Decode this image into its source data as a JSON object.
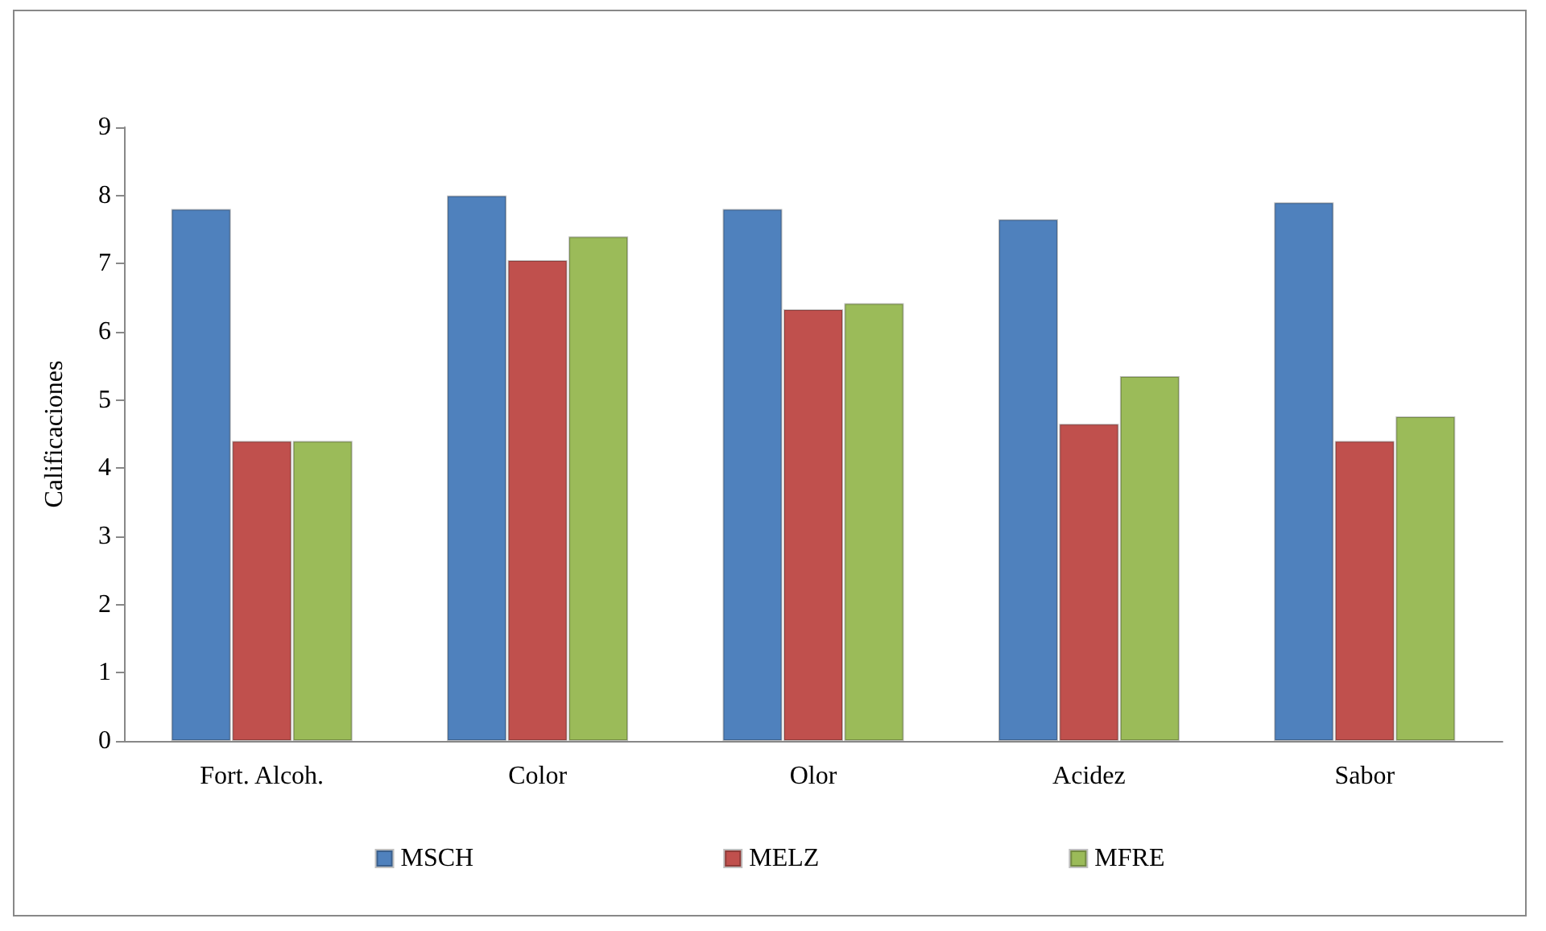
{
  "chart_data": {
    "type": "bar",
    "ylabel": "Calificaciones",
    "categories": [
      "Fort. Alcoh.",
      "Color",
      "Olor",
      "Acidez",
      "Sabor"
    ],
    "series": [
      {
        "name": "MSCH",
        "color": "#4f81bd",
        "values": [
          7.8,
          8.0,
          7.8,
          7.65,
          7.9
        ]
      },
      {
        "name": "MELZ",
        "color": "#c0504d",
        "values": [
          4.4,
          7.05,
          6.33,
          4.65,
          4.4
        ]
      },
      {
        "name": "MFRE",
        "color": "#9bbb59",
        "values": [
          4.4,
          7.4,
          6.42,
          5.35,
          4.76
        ]
      }
    ],
    "ylim": [
      0,
      9
    ],
    "yticks": [
      0,
      1,
      2,
      3,
      4,
      5,
      6,
      7,
      8,
      9
    ],
    "grid": false,
    "legend": "bottom"
  }
}
